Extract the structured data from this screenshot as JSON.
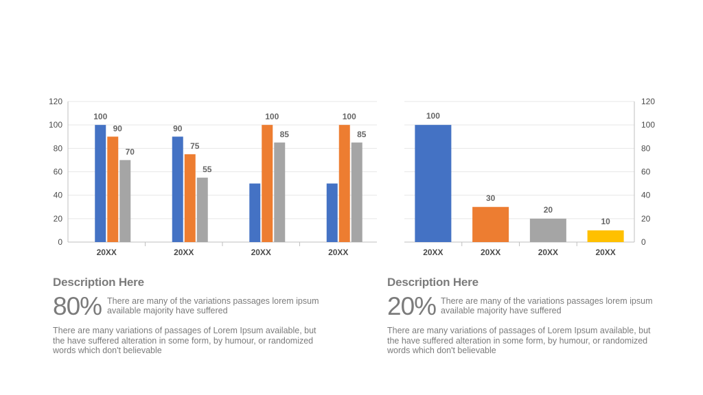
{
  "colors": {
    "blue": "#4472C4",
    "orange": "#ED7D31",
    "gray": "#A5A5A5",
    "yellow": "#FFC000",
    "axis": "#bfbfbf",
    "grid": "#e7e7e7",
    "text": "#7b7b7b"
  },
  "chart_data": [
    {
      "type": "bar",
      "categories": [
        "20XX",
        "20XX",
        "20XX",
        "20XX"
      ],
      "series": [
        {
          "values": [
            100,
            90,
            50,
            50
          ],
          "color": "#4472C4"
        },
        {
          "values": [
            90,
            75,
            100,
            100
          ],
          "color": "#ED7D31"
        },
        {
          "values": [
            70,
            55,
            85,
            85
          ],
          "color": "#A5A5A5"
        }
      ],
      "data_labels": [
        [
          100,
          90,
          null,
          null
        ],
        [
          90,
          75,
          100,
          100
        ],
        [
          70,
          55,
          85,
          85
        ]
      ],
      "ylim": [
        0,
        120
      ],
      "yticks": [
        0,
        20,
        40,
        60,
        80,
        100,
        120
      ],
      "y_axis_side": "left",
      "grid": true
    },
    {
      "type": "bar",
      "categories": [
        "20XX",
        "20XX",
        "20XX",
        "20XX"
      ],
      "values": [
        100,
        30,
        20,
        10
      ],
      "colors": [
        "#4472C4",
        "#ED7D31",
        "#A5A5A5",
        "#FFC000"
      ],
      "ylim": [
        0,
        120
      ],
      "yticks": [
        0,
        20,
        40,
        60,
        80,
        100,
        120
      ],
      "y_axis_side": "right",
      "grid": true
    }
  ],
  "left_panel": {
    "title": "Description Here",
    "percent": "80%",
    "percent_text": "There are many of the variations passages lorem ipsum available majority have suffered",
    "body": "There are many variations of passages  of Lorem Ipsum available, but the have suffered alteration in some  form, by humour, or randomized words which  don't believable"
  },
  "right_panel": {
    "title": "Description Here",
    "percent": "20%",
    "percent_text": "There are many of the variations passages lorem ipsum available majority have suffered",
    "body": "There are many variations of passages  of Lorem Ipsum available, but the have suffered alteration in some  form, by humour, or randomized words which  don't believable"
  }
}
